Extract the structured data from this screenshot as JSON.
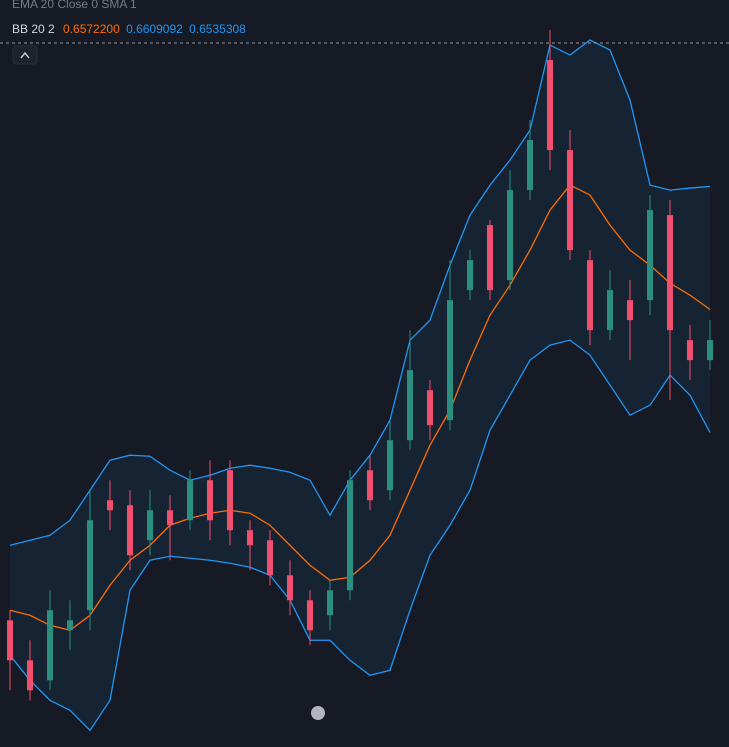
{
  "chart_data": {
    "type": "candlestick",
    "header": "EMA 20 Close 0 SMA 1",
    "legend": {
      "label": "BB 20 2",
      "values": [
        "0.6572200",
        "0.6609092",
        "0.6535308"
      ]
    },
    "ylim": [
      0.6441,
      0.6665
    ],
    "up_color": "#2a8f7f",
    "down_color": "#f0506e",
    "open": [
      0.6479,
      0.6467,
      0.6461,
      0.6476,
      0.6482,
      0.6515,
      0.65135,
      0.6503,
      0.6512,
      0.6509,
      0.6521,
      0.6524,
      0.6506,
      0.6503,
      0.64925,
      0.6485,
      0.64805,
      0.6488,
      0.6524,
      0.6518,
      0.6533,
      0.6548,
      0.6539,
      0.6578,
      0.65975,
      0.6581,
      0.6608,
      0.6647,
      0.662,
      0.6587,
      0.6566,
      0.6575,
      0.6575,
      0.66005,
      0.6563,
      0.6557
    ],
    "high": [
      0.6482,
      0.6473,
      0.6488,
      0.6485,
      0.6518,
      0.6521,
      0.6518,
      0.6518,
      0.65165,
      0.6524,
      0.6527,
      0.6527,
      0.6509,
      0.6506,
      0.6497,
      0.6488,
      0.6491,
      0.6524,
      0.65285,
      0.6539,
      0.6566,
      0.6551,
      0.6587,
      0.659,
      0.6599,
      0.6614,
      0.6629,
      0.6656,
      0.6626,
      0.659,
      0.6584,
      0.6581,
      0.66065,
      0.6605,
      0.65675,
      0.6569
    ],
    "low": [
      0.6458,
      0.6455,
      0.6458,
      0.647,
      0.6476,
      0.6506,
      0.6494,
      0.64985,
      0.6497,
      0.6506,
      0.6503,
      0.65015,
      0.6494,
      0.64895,
      0.64805,
      0.64715,
      0.6476,
      0.6485,
      0.6512,
      0.6515,
      0.653,
      0.6533,
      0.6536,
      0.6575,
      0.6575,
      0.6578,
      0.6605,
      0.6614,
      0.6587,
      0.65615,
      0.6563,
      0.6557,
      0.65705,
      0.6545,
      0.6551,
      0.6554
    ],
    "close": [
      0.6467,
      0.6458,
      0.6482,
      0.6479,
      0.6509,
      0.6512,
      0.64985,
      0.6512,
      0.65075,
      0.6521,
      0.6509,
      0.6506,
      0.65015,
      0.64925,
      0.6485,
      0.6476,
      0.6488,
      0.6521,
      0.6515,
      0.6533,
      0.6554,
      0.65375,
      0.6575,
      0.6587,
      0.6578,
      0.6608,
      0.6623,
      0.662,
      0.659,
      0.6566,
      0.6578,
      0.6569,
      0.6602,
      0.6566,
      0.6557,
      0.6563
    ],
    "bands": {
      "upper": {
        "color": "#2196f3",
        "values": [
          0.65015,
          0.6503,
          0.65045,
          0.6509,
          0.6518,
          0.6527,
          0.65285,
          0.65282,
          0.6524,
          0.6521,
          0.65225,
          0.65246,
          0.65255,
          0.65246,
          0.65234,
          0.6521,
          0.65105,
          0.6521,
          0.65285,
          0.6539,
          0.6563,
          0.6569,
          0.65855,
          0.66005,
          0.66095,
          0.6617,
          0.6626,
          0.66515,
          0.66485,
          0.6653,
          0.665,
          0.6635,
          0.66095,
          0.6608,
          0.66086,
          0.6609092
        ]
      },
      "middle": {
        "color": "#ff6d00",
        "values": [
          0.6482,
          0.64805,
          0.64775,
          0.6476,
          0.64805,
          0.64895,
          0.6497,
          0.65015,
          0.65075,
          0.65096,
          0.65111,
          0.6512,
          0.65111,
          0.65075,
          0.65015,
          0.64955,
          0.6491,
          0.64919,
          0.6497,
          0.65045,
          0.6518,
          0.65315,
          0.6542,
          0.6557,
          0.65705,
          0.65795,
          0.659,
          0.6602,
          0.66095,
          0.66065,
          0.65975,
          0.659,
          0.65855,
          0.65801,
          0.65765,
          0.65722
        ]
      },
      "lower": {
        "color": "#2196f3",
        "values": [
          0.64685,
          0.6461,
          0.6455,
          0.6452,
          0.6446,
          0.6455,
          0.6488,
          0.6497,
          0.64982,
          0.64976,
          0.6497,
          0.64961,
          0.64949,
          0.64925,
          0.6485,
          0.6473,
          0.6473,
          0.6467,
          0.64625,
          0.6464,
          0.6482,
          0.64985,
          0.65075,
          0.6518,
          0.6536,
          0.65465,
          0.6557,
          0.65615,
          0.6563,
          0.65585,
          0.65495,
          0.65405,
          0.65435,
          0.65525,
          0.65465,
          0.6535308
        ]
      }
    }
  }
}
